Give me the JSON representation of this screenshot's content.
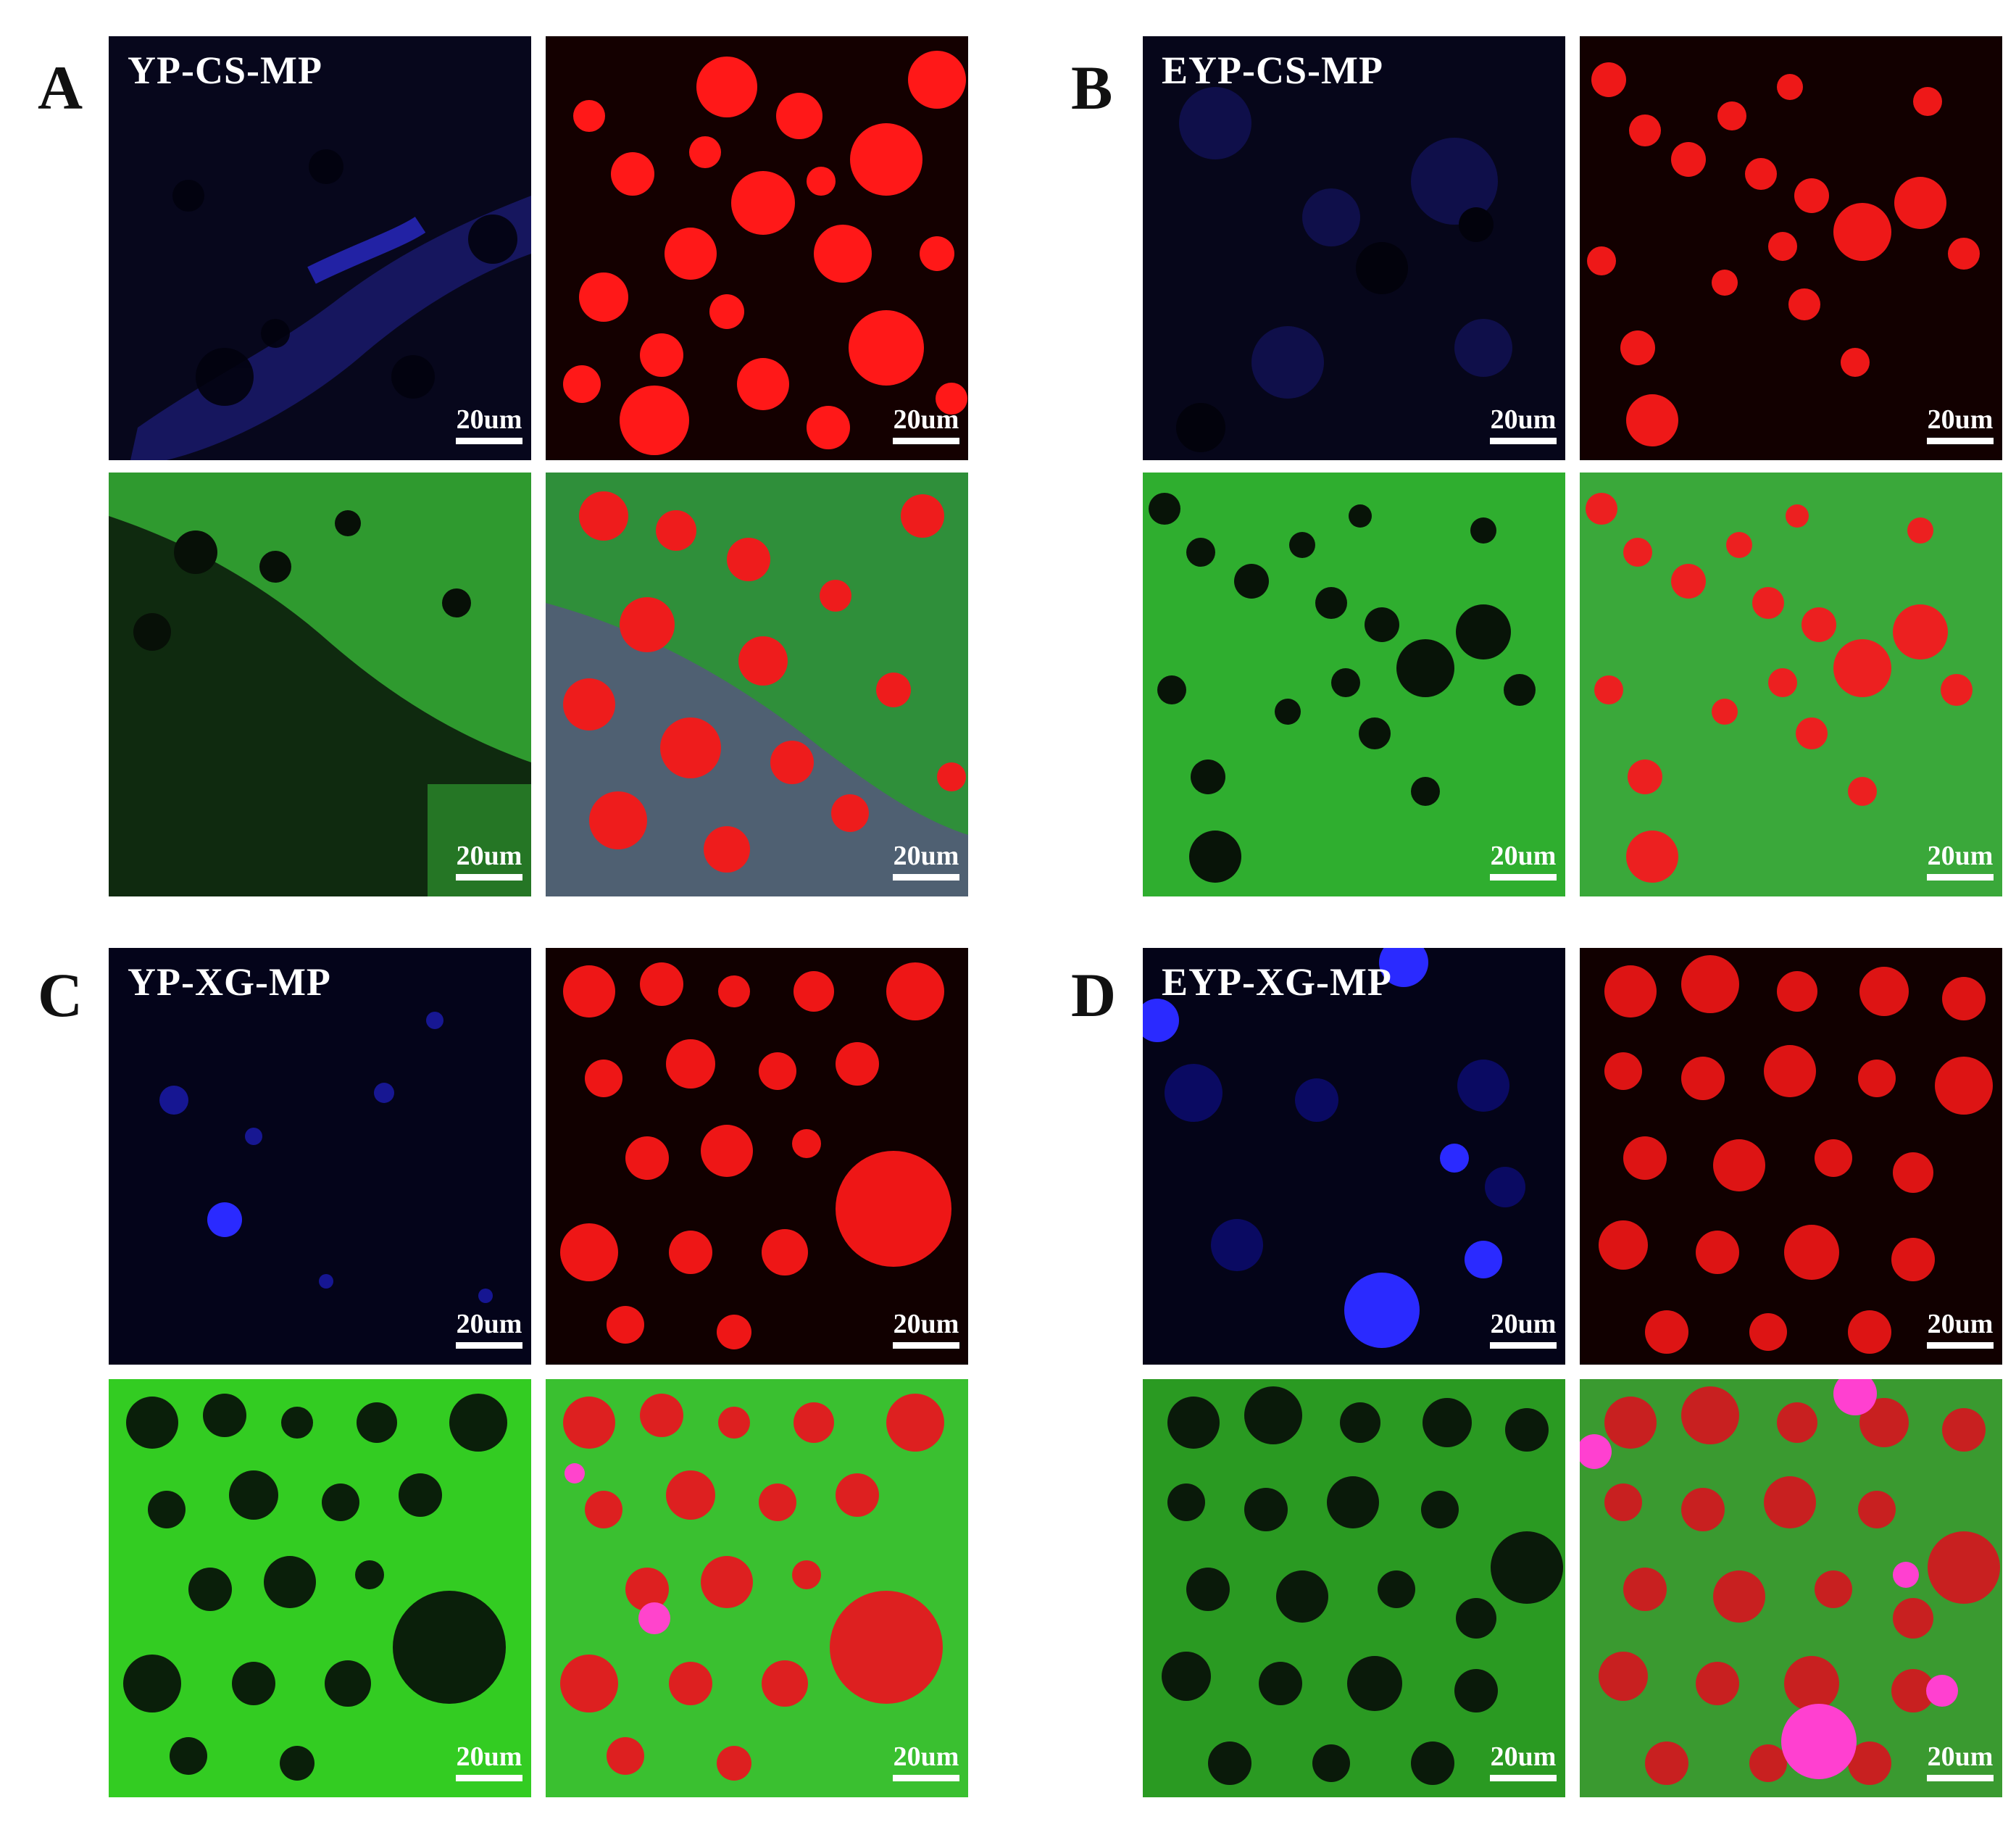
{
  "figure": {
    "panels": [
      {
        "letter": "A",
        "title": "YP-CS-MP",
        "scale_label": "20um"
      },
      {
        "letter": "B",
        "title": "EYP-CS-MP",
        "scale_label": "20um"
      },
      {
        "letter": "C",
        "title": "YP-XG-MP",
        "scale_label": "20um"
      },
      {
        "letter": "D",
        "title": "EYP-XG-MP",
        "scale_label": "20um"
      }
    ],
    "channel_colors": {
      "blue_bg": "#05051a",
      "blue_fg": "#2a2aff",
      "red_bg": "#120000",
      "red_fg": "#ff1a1a",
      "green_bg": "#2fa82f",
      "green_fg": "#0a1a0a",
      "merge_bg": "#38a838",
      "merge_fg": "#ee2222"
    }
  }
}
